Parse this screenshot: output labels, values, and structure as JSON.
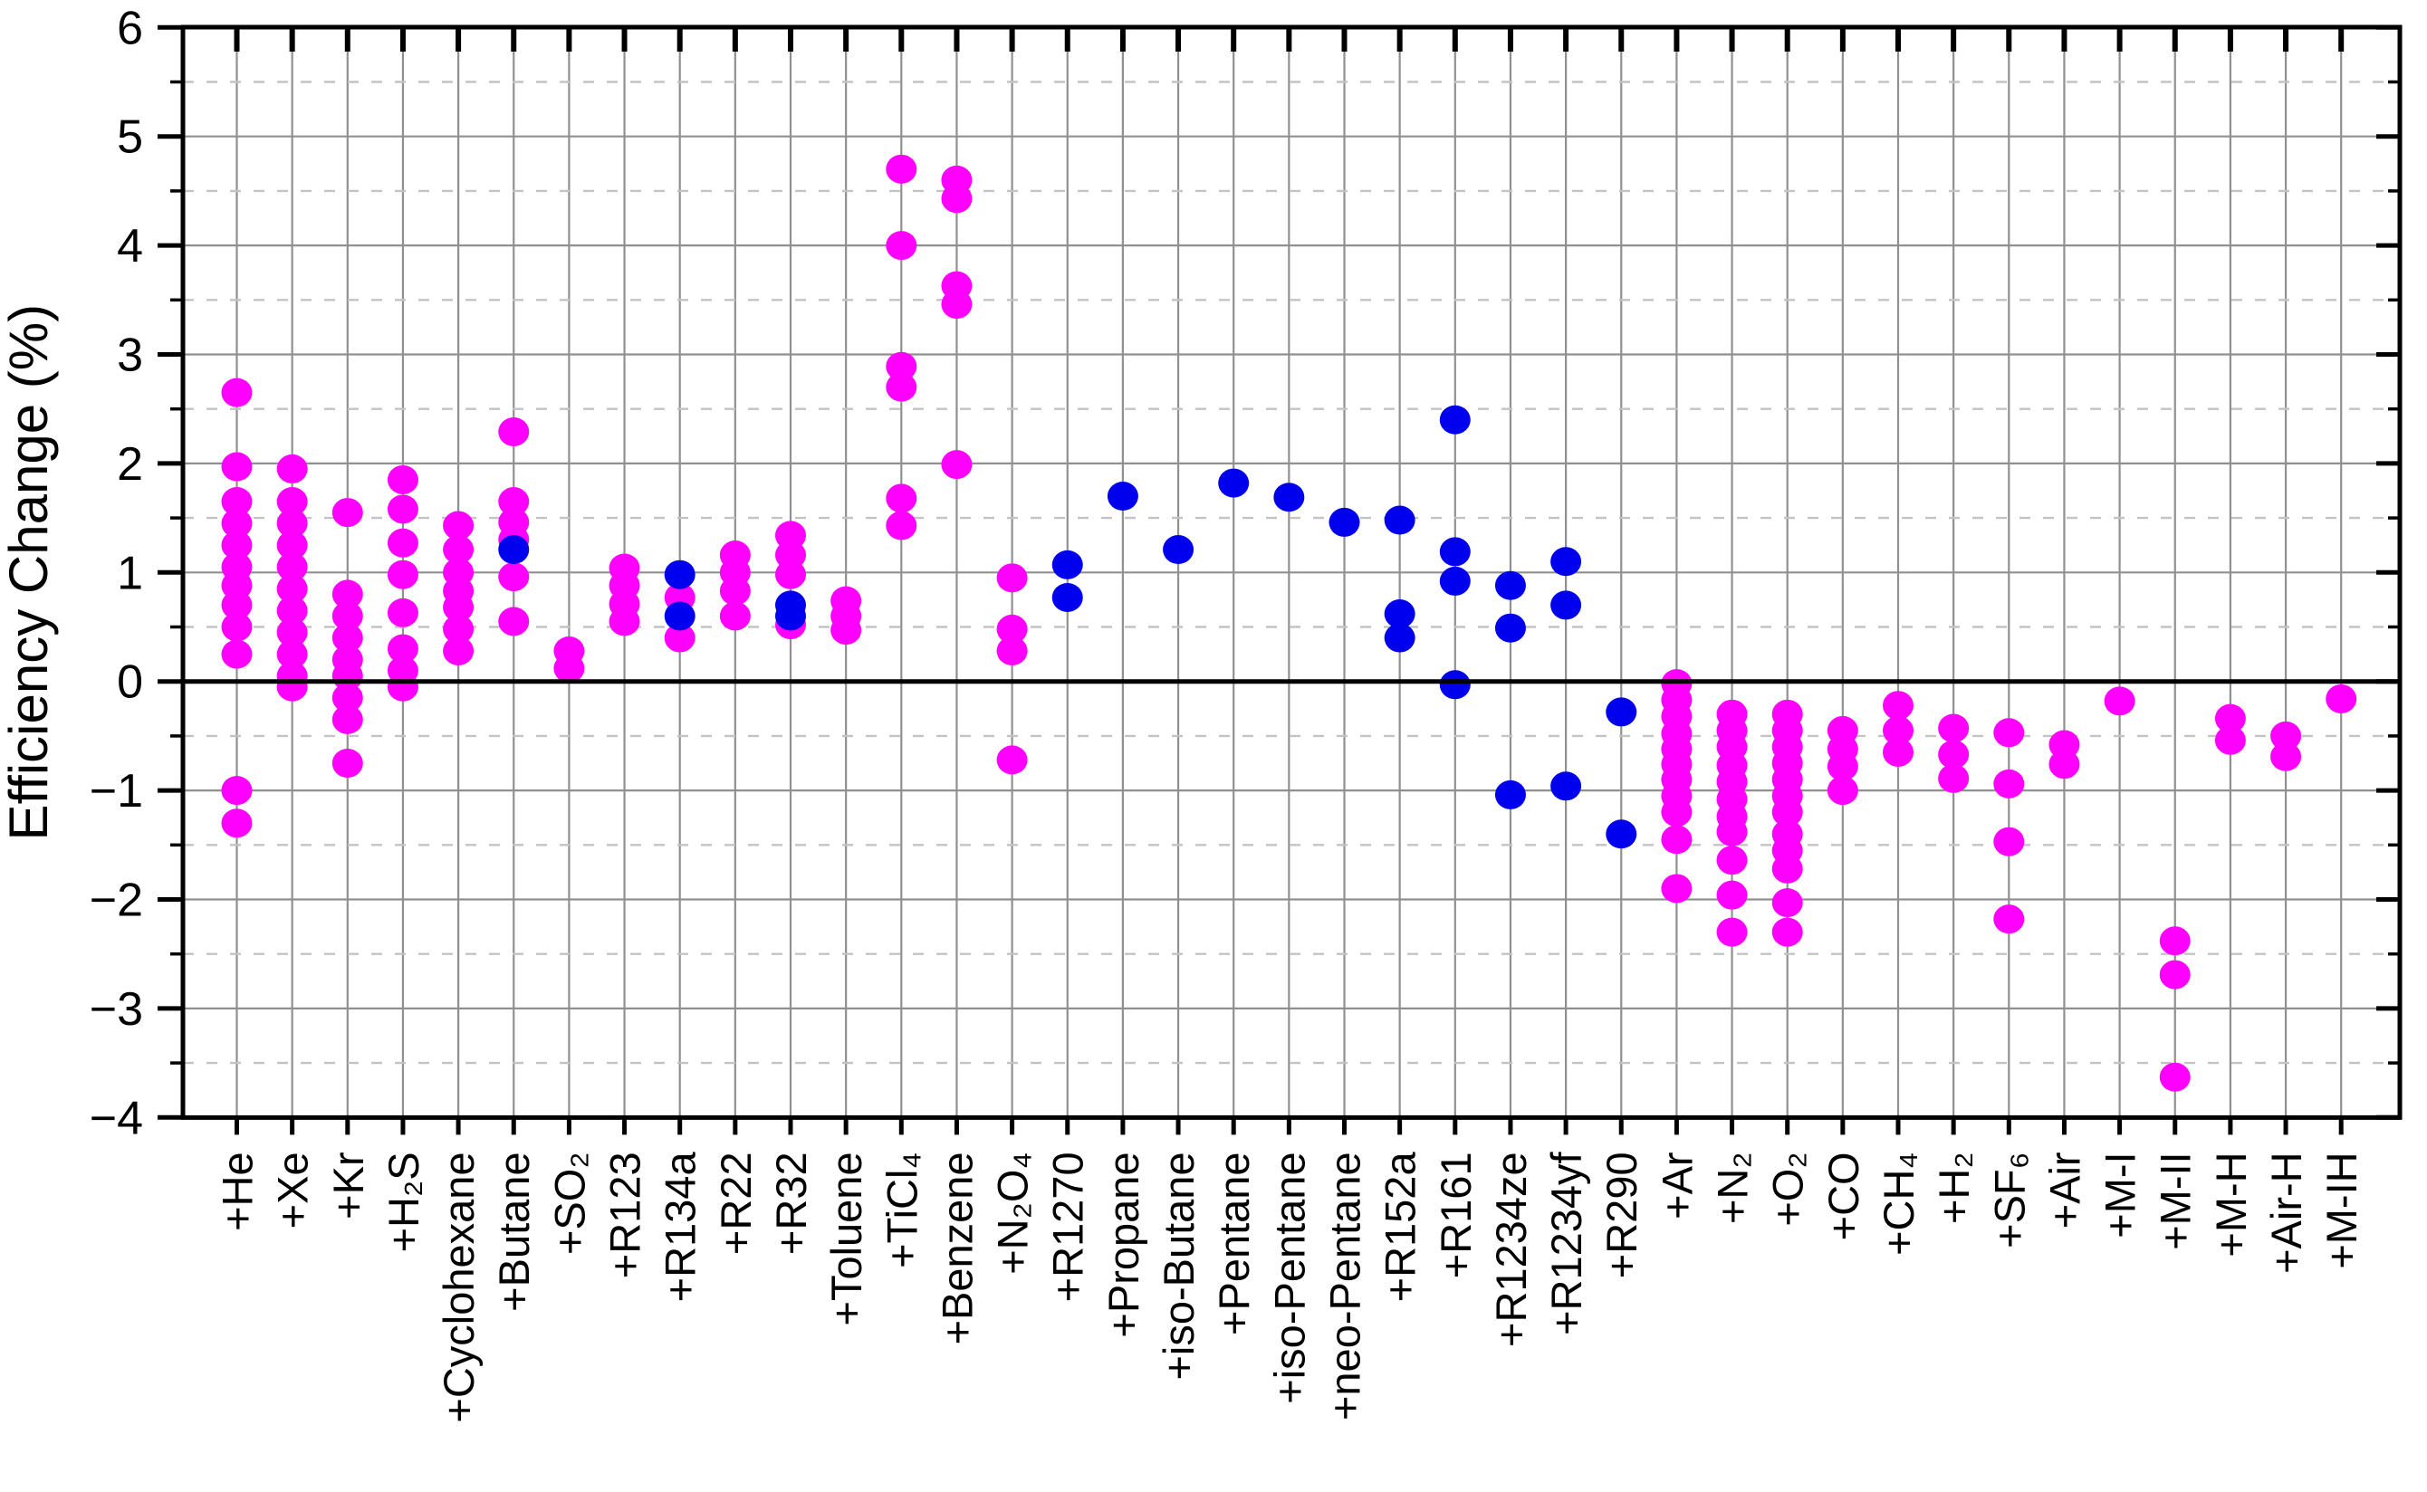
{
  "chart_data": {
    "type": "scatter",
    "title": "",
    "ylabel": "Efficiency Change (%)",
    "xlabel": "",
    "ylim": [
      -4,
      6
    ],
    "y_major_step": 1,
    "y_minor_step": 0.5,
    "grid": {
      "vertical": "solid gray per category",
      "horizontal_major": "solid gray",
      "horizontal_minor": "dashed light gray",
      "zero_line": "thick black"
    },
    "legend_position": "none",
    "y_tick_labels": [
      "6",
      "5",
      "4",
      "3",
      "2",
      "1",
      "0",
      "−1",
      "−2",
      "−3",
      "−4"
    ],
    "colors": {
      "magenta": "#FF00FF",
      "blue": "#0000EE"
    },
    "marker": "filled-ellipse",
    "categories": [
      {
        "label": "+He",
        "magenta": [
          2.65,
          1.97,
          1.65,
          1.45,
          1.25,
          1.05,
          0.88,
          0.7,
          0.5,
          0.25,
          -1.0,
          -1.3
        ],
        "blue": []
      },
      {
        "label": "+Xe",
        "magenta": [
          1.95,
          1.65,
          1.45,
          1.25,
          1.05,
          0.85,
          0.65,
          0.45,
          0.25,
          0.05,
          -0.05
        ],
        "blue": []
      },
      {
        "label": "+Kr",
        "magenta": [
          1.55,
          0.8,
          0.6,
          0.4,
          0.2,
          0.05,
          -0.15,
          -0.35,
          -0.75
        ],
        "blue": []
      },
      {
        "label": "+H₂S",
        "magenta": [
          1.85,
          1.58,
          1.27,
          0.98,
          0.63,
          0.3,
          0.1,
          -0.05
        ],
        "blue": []
      },
      {
        "label": "+Cyclohexane",
        "magenta": [
          1.43,
          1.21,
          1.0,
          0.83,
          0.68,
          0.48,
          0.28
        ],
        "blue": []
      },
      {
        "label": "+Butane",
        "magenta": [
          2.29,
          1.65,
          1.46,
          1.3,
          0.96,
          0.55
        ],
        "blue": [
          1.21
        ]
      },
      {
        "label": "+SO₂",
        "magenta": [
          0.28,
          0.12
        ],
        "blue": []
      },
      {
        "label": "+R123",
        "magenta": [
          1.04,
          0.88,
          0.71,
          0.55
        ],
        "blue": []
      },
      {
        "label": "+R134a",
        "magenta": [
          0.77,
          0.4
        ],
        "blue": [
          0.98,
          0.6
        ]
      },
      {
        "label": "+R22",
        "magenta": [
          1.16,
          1.0,
          0.83,
          0.6
        ],
        "blue": []
      },
      {
        "label": "+R32",
        "magenta": [
          1.34,
          1.16,
          0.98,
          0.52
        ],
        "blue": [
          0.7,
          0.6
        ]
      },
      {
        "label": "+Toluene",
        "magenta": [
          0.74,
          0.6,
          0.47
        ],
        "blue": []
      },
      {
        "label": "+TiCl₄",
        "magenta": [
          4.7,
          4.0,
          2.89,
          2.7,
          1.68,
          1.43
        ],
        "blue": []
      },
      {
        "label": "+Benzene",
        "magenta": [
          4.6,
          4.43,
          3.63,
          3.46,
          1.99
        ],
        "blue": []
      },
      {
        "label": "+N₂O₄",
        "magenta": [
          0.95,
          0.48,
          0.28,
          -0.72
        ],
        "blue": []
      },
      {
        "label": "+R1270",
        "magenta": [],
        "blue": [
          1.07,
          0.77
        ]
      },
      {
        "label": "+Propane",
        "magenta": [],
        "blue": [
          1.7
        ]
      },
      {
        "label": "+iso-Butane",
        "magenta": [],
        "blue": [
          1.21
        ]
      },
      {
        "label": "+Pentane",
        "magenta": [],
        "blue": [
          1.82
        ]
      },
      {
        "label": "+iso-Pentane",
        "magenta": [],
        "blue": [
          1.69
        ]
      },
      {
        "label": "+neo-Pentane",
        "magenta": [],
        "blue": [
          1.46
        ]
      },
      {
        "label": "+R152a",
        "magenta": [],
        "blue": [
          1.48,
          0.62,
          0.4
        ]
      },
      {
        "label": "+R161",
        "magenta": [],
        "blue": [
          2.4,
          1.19,
          0.92,
          -0.03
        ]
      },
      {
        "label": "+R1234ze",
        "magenta": [],
        "blue": [
          0.88,
          0.49,
          -1.04
        ]
      },
      {
        "label": "+R1234yf",
        "magenta": [],
        "blue": [
          1.1,
          0.7,
          -0.96
        ]
      },
      {
        "label": "+R290",
        "magenta": [],
        "blue": [
          -0.28,
          -1.4
        ]
      },
      {
        "label": "+Ar",
        "magenta": [
          -0.02,
          -0.17,
          -0.32,
          -0.48,
          -0.62,
          -0.76,
          -0.9,
          -1.05,
          -1.2,
          -1.45,
          -1.9
        ],
        "blue": []
      },
      {
        "label": "+N₂",
        "magenta": [
          -0.3,
          -0.45,
          -0.6,
          -0.77,
          -0.92,
          -1.08,
          -1.24,
          -1.38,
          -1.64,
          -1.96,
          -2.3
        ],
        "blue": []
      },
      {
        "label": "+O₂",
        "magenta": [
          -0.3,
          -0.45,
          -0.6,
          -0.75,
          -0.9,
          -1.05,
          -1.2,
          -1.4,
          -1.55,
          -1.72,
          -2.03,
          -2.3
        ],
        "blue": []
      },
      {
        "label": "+CO",
        "magenta": [
          -0.45,
          -0.62,
          -0.78,
          -1.0
        ],
        "blue": []
      },
      {
        "label": "+CH₄",
        "magenta": [
          -0.22,
          -0.45,
          -0.65
        ],
        "blue": []
      },
      {
        "label": "+H₂",
        "magenta": [
          -0.43,
          -0.67,
          -0.89
        ],
        "blue": []
      },
      {
        "label": "+SF₆",
        "magenta": [
          -0.47,
          -0.94,
          -1.47,
          -2.18
        ],
        "blue": []
      },
      {
        "label": "+Air",
        "magenta": [
          -0.58,
          -0.76
        ],
        "blue": []
      },
      {
        "label": "+M-I",
        "magenta": [
          -0.18
        ],
        "blue": []
      },
      {
        "label": "+M-II",
        "magenta": [
          -2.38,
          -2.69,
          -3.63
        ],
        "blue": []
      },
      {
        "label": "+M-H",
        "magenta": [
          -0.34,
          -0.54
        ],
        "blue": []
      },
      {
        "label": "+Air-H",
        "magenta": [
          -0.5,
          -0.69
        ],
        "blue": []
      },
      {
        "label": "+M-IH",
        "magenta": [
          -0.16
        ],
        "blue": []
      }
    ]
  }
}
